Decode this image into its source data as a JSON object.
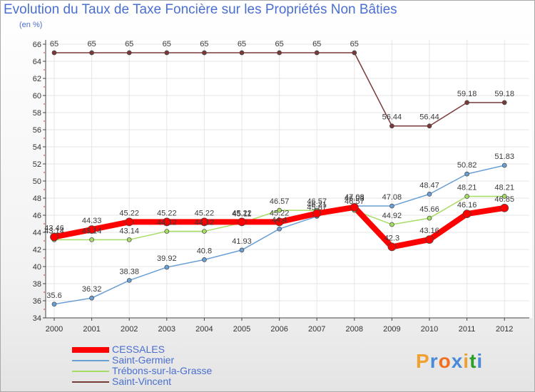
{
  "chart_data": {
    "type": "line",
    "title": "Evolution du Taux de Taxe Foncière sur les Propriétés Non Bâties",
    "unit_label": "(en %)",
    "xlabel": "",
    "ylabel": "",
    "categories": [
      "2000",
      "2001",
      "2002",
      "2003",
      "2004",
      "2005",
      "2006",
      "2007",
      "2008",
      "2009",
      "2010",
      "2011",
      "2012"
    ],
    "ylim": [
      34,
      66
    ],
    "yticks": [
      34,
      36,
      38,
      40,
      42,
      44,
      46,
      48,
      50,
      52,
      54,
      56,
      58,
      60,
      62,
      64,
      66
    ],
    "grid": true,
    "legend_position": "bottom-left",
    "series": [
      {
        "name": "Saint-Vincent",
        "color": "#7a3a3a",
        "values": [
          65,
          65,
          65,
          65,
          65,
          65,
          65,
          65,
          65,
          56.44,
          56.44,
          59.18,
          59.18
        ],
        "labels": [
          "65",
          "65",
          "65",
          "65",
          "65",
          "65",
          "65",
          "65",
          "65",
          "56.44",
          "56.44",
          "59.18",
          "59.18"
        ]
      },
      {
        "name": "Saint-Germier",
        "color": "#6a9fd4",
        "values": [
          35.6,
          36.32,
          38.38,
          39.92,
          40.8,
          41.93,
          44.4,
          45.87,
          47.08,
          47.08,
          48.47,
          50.82,
          51.83
        ],
        "labels": [
          "35.6",
          "36.32",
          "38.38",
          "39.92",
          "40.8",
          "41.93",
          "44.4",
          "45.87",
          "47.08",
          "47.08",
          "48.47",
          "50.82",
          "51.83"
        ]
      },
      {
        "name": "Trébons-sur-la-Grasse",
        "color": "#a6dc64",
        "values": [
          43.14,
          43.14,
          43.14,
          44.12,
          44.12,
          45.11,
          46.57,
          46.57,
          46.57,
          44.92,
          45.66,
          48.21,
          48.21
        ],
        "labels": [
          "43.14",
          "43.14",
          "43.14",
          "44.12",
          "44.12",
          "45.11",
          "46.57",
          "46.57",
          "46.57",
          "44.92",
          "45.66",
          "48.21",
          "48.21"
        ]
      },
      {
        "name": "CESSALES",
        "color": "#ff0000",
        "values": [
          43.46,
          44.33,
          45.22,
          45.22,
          45.22,
          45.22,
          45.22,
          46.21,
          46.93,
          42.3,
          43.16,
          46.16,
          46.85
        ],
        "labels": [
          "43.46",
          "44.33",
          "45.22",
          "45.22",
          "45.22",
          "45.22",
          "45.22",
          "46.21",
          "46.93",
          "42.3",
          "43.16",
          "46.16",
          "46.85"
        ]
      }
    ]
  },
  "legend": {
    "items": [
      {
        "label": "CESSALES",
        "color": "#ff0000"
      },
      {
        "label": "Saint-Germier",
        "color": "#6a9fd4"
      },
      {
        "label": "Trébons-sur-la-Grasse",
        "color": "#a6dc64"
      },
      {
        "label": "Saint-Vincent",
        "color": "#7a3a3a"
      }
    ]
  },
  "logo": {
    "letters": [
      "P",
      "r",
      "o",
      "x",
      "i",
      "t",
      "i"
    ],
    "colors": [
      "#f0a030",
      "#4a8ad8",
      "#f07020",
      "#4a8ad8",
      "#f0a030",
      "#2aa02a",
      "#4a8ad8"
    ]
  }
}
